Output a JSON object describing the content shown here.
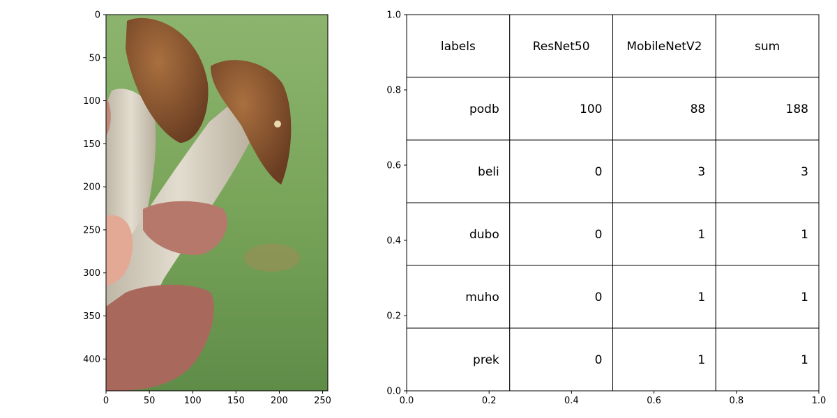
{
  "chart_data": [
    {
      "type": "image",
      "subject": "mushroom",
      "x_ticks": [
        0,
        50,
        100,
        150,
        200,
        250
      ],
      "y_ticks": [
        0,
        50,
        100,
        150,
        200,
        250,
        300,
        350,
        400
      ],
      "xlim": [
        0,
        256
      ],
      "ylim": [
        0,
        437
      ],
      "y_inverted": true
    },
    {
      "type": "table",
      "columns": [
        "labels",
        "ResNet50",
        "MobileNetV2",
        "sum"
      ],
      "rows": [
        [
          "podb",
          "100",
          "88",
          "188"
        ],
        [
          "beli",
          "0",
          "3",
          "3"
        ],
        [
          "dubo",
          "0",
          "1",
          "1"
        ],
        [
          "muho",
          "0",
          "1",
          "1"
        ],
        [
          "prek",
          "0",
          "1",
          "1"
        ]
      ],
      "xlim": [
        0.0,
        1.0
      ],
      "ylim": [
        0.0,
        1.0
      ],
      "x_ticks": [
        "0.0",
        "0.2",
        "0.4",
        "0.6",
        "0.8",
        "1.0"
      ],
      "y_ticks": [
        "0.0",
        "0.2",
        "0.4",
        "0.6",
        "0.8",
        "1.0"
      ]
    }
  ],
  "colors": {
    "sky": "#7aa35d",
    "grass_dark": "#5d8a45",
    "cap": "#7a4a2a",
    "cap_light": "#a0683c",
    "stem": "#d9d2c2",
    "skin": "#b07762",
    "skin_dark": "#8a5646"
  }
}
